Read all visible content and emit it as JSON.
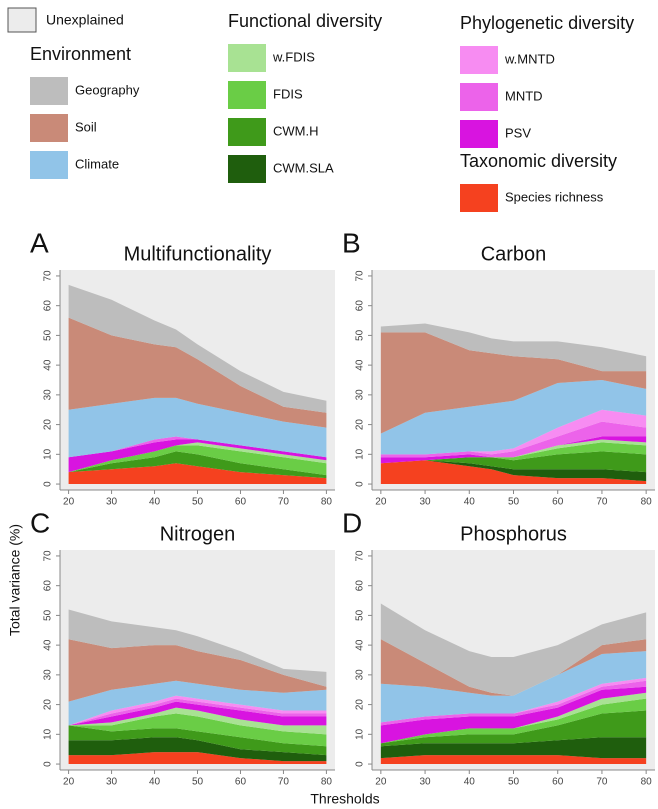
{
  "legend": {
    "unexplained": {
      "name": "Unexplained",
      "color": "#ececec"
    },
    "groups": [
      {
        "title": "Environment",
        "items": [
          {
            "name": "Geography",
            "color": "#bdbdbd"
          },
          {
            "name": "Soil",
            "color": "#c98a78"
          },
          {
            "name": "Climate",
            "color": "#91c4e8"
          }
        ]
      },
      {
        "title": "Functional diversity",
        "items": [
          {
            "name": "w.FDIS",
            "color": "#a8e293"
          },
          {
            "name": "FDIS",
            "color": "#6acd46"
          },
          {
            "name": "CWM.H",
            "color": "#3f9a1a"
          },
          {
            "name": "CWM.SLA",
            "color": "#1f5e0d"
          }
        ]
      },
      {
        "title": "Phylogenetic diversity",
        "items": [
          {
            "name": "w.MNTD",
            "color": "#f78cf2"
          },
          {
            "name": "MNTD",
            "color": "#ec63ea"
          },
          {
            "name": "PSV",
            "color": "#d814e0"
          }
        ]
      },
      {
        "title": "Taxonomic diversity",
        "items": [
          {
            "name": "Species richness",
            "color": "#f5411f"
          }
        ]
      }
    ]
  },
  "y_label": "Total variance (%)",
  "x_label": "Thresholds",
  "chart_data": [
    {
      "type": "area",
      "panel": "A",
      "title": "Multifunctionality",
      "x": [
        20,
        30,
        40,
        45,
        50,
        60,
        70,
        80
      ],
      "xlim": [
        18,
        82
      ],
      "xticks": [
        20,
        30,
        40,
        50,
        60,
        70,
        80
      ],
      "ylim": [
        -2,
        72
      ],
      "yticks": [
        0,
        10,
        20,
        30,
        40,
        50,
        60,
        70
      ],
      "series": [
        {
          "name": "Species richness",
          "color": "#f5411f",
          "values": [
            4,
            5,
            6,
            7,
            6,
            4,
            3,
            2
          ]
        },
        {
          "name": "CWM.SLA",
          "color": "#1f5e0d",
          "values": [
            0,
            0,
            0,
            0,
            0,
            0,
            0,
            0
          ]
        },
        {
          "name": "CWM.H",
          "color": "#3f9a1a",
          "values": [
            0,
            2,
            3,
            4,
            4,
            3,
            2,
            1
          ]
        },
        {
          "name": "FDIS",
          "color": "#6acd46",
          "values": [
            0,
            1,
            2,
            2,
            3,
            4,
            4,
            4
          ]
        },
        {
          "name": "w.FDIS",
          "color": "#a8e293",
          "values": [
            0,
            0,
            0,
            0,
            1,
            1,
            1,
            1
          ]
        },
        {
          "name": "PSV",
          "color": "#d814e0",
          "values": [
            5,
            3,
            3,
            2,
            1,
            1,
            1,
            1
          ]
        },
        {
          "name": "MNTD",
          "color": "#ec63ea",
          "values": [
            0,
            0,
            1,
            1,
            0,
            0,
            0,
            0
          ]
        },
        {
          "name": "w.MNTD",
          "color": "#f78cf2",
          "values": [
            0,
            0,
            0,
            0,
            0,
            0,
            0,
            0
          ]
        },
        {
          "name": "Climate",
          "color": "#91c4e8",
          "values": [
            16,
            16,
            14,
            13,
            12,
            11,
            10,
            10
          ]
        },
        {
          "name": "Soil",
          "color": "#c98a78",
          "values": [
            31,
            23,
            18,
            17,
            15,
            9,
            5,
            5
          ]
        },
        {
          "name": "Geography",
          "color": "#bdbdbd",
          "values": [
            11,
            12,
            8,
            6,
            5,
            5,
            5,
            4
          ]
        }
      ]
    },
    {
      "type": "area",
      "panel": "B",
      "title": "Carbon",
      "x": [
        20,
        30,
        40,
        45,
        50,
        60,
        70,
        80
      ],
      "xlim": [
        18,
        82
      ],
      "xticks": [
        20,
        30,
        40,
        50,
        60,
        70,
        80
      ],
      "ylim": [
        -2,
        72
      ],
      "yticks": [
        0,
        10,
        20,
        30,
        40,
        50,
        60,
        70
      ],
      "series": [
        {
          "name": "Species richness",
          "color": "#f5411f",
          "values": [
            7,
            8,
            6,
            5,
            3,
            2,
            2,
            1
          ]
        },
        {
          "name": "CWM.SLA",
          "color": "#1f5e0d",
          "values": [
            0,
            0,
            1,
            1,
            2,
            3,
            3,
            3
          ]
        },
        {
          "name": "CWM.H",
          "color": "#3f9a1a",
          "values": [
            0,
            0,
            2,
            3,
            3,
            5,
            6,
            6
          ]
        },
        {
          "name": "FDIS",
          "color": "#6acd46",
          "values": [
            0,
            0,
            0,
            0,
            1,
            2,
            3,
            3
          ]
        },
        {
          "name": "w.FDIS",
          "color": "#a8e293",
          "values": [
            0,
            0,
            0,
            0,
            0,
            1,
            1,
            1
          ]
        },
        {
          "name": "PSV",
          "color": "#d814e0",
          "values": [
            2,
            1,
            1,
            0,
            0,
            0,
            1,
            2
          ]
        },
        {
          "name": "MNTD",
          "color": "#ec63ea",
          "values": [
            1,
            1,
            1,
            1,
            2,
            3,
            5,
            3
          ]
        },
        {
          "name": "w.MNTD",
          "color": "#f78cf2",
          "values": [
            0,
            0,
            0,
            1,
            1,
            3,
            4,
            4
          ]
        },
        {
          "name": "Climate",
          "color": "#91c4e8",
          "values": [
            7,
            14,
            15,
            16,
            16,
            15,
            10,
            9
          ]
        },
        {
          "name": "Soil",
          "color": "#c98a78",
          "values": [
            34,
            27,
            19,
            17,
            15,
            8,
            3,
            6
          ]
        },
        {
          "name": "Geography",
          "color": "#bdbdbd",
          "values": [
            2,
            3,
            6,
            5,
            5,
            6,
            8,
            5
          ]
        }
      ]
    },
    {
      "type": "area",
      "panel": "C",
      "title": "Nitrogen",
      "x": [
        20,
        30,
        40,
        45,
        50,
        60,
        70,
        80
      ],
      "xlim": [
        18,
        82
      ],
      "xticks": [
        20,
        30,
        40,
        50,
        60,
        70,
        80
      ],
      "ylim": [
        -2,
        72
      ],
      "yticks": [
        0,
        10,
        20,
        30,
        40,
        50,
        60,
        70
      ],
      "series": [
        {
          "name": "Species richness",
          "color": "#f5411f",
          "values": [
            3,
            3,
            4,
            4,
            4,
            2,
            1,
            1
          ]
        },
        {
          "name": "CWM.SLA",
          "color": "#1f5e0d",
          "values": [
            5,
            5,
            5,
            5,
            4,
            3,
            3,
            2
          ]
        },
        {
          "name": "CWM.H",
          "color": "#3f9a1a",
          "values": [
            5,
            3,
            3,
            3,
            3,
            4,
            3,
            3
          ]
        },
        {
          "name": "FDIS",
          "color": "#6acd46",
          "values": [
            0,
            2,
            4,
            5,
            5,
            4,
            4,
            4
          ]
        },
        {
          "name": "w.FDIS",
          "color": "#a8e293",
          "values": [
            0,
            1,
            1,
            2,
            2,
            2,
            2,
            3
          ]
        },
        {
          "name": "PSV",
          "color": "#d814e0",
          "values": [
            0,
            2,
            2,
            2,
            2,
            3,
            3,
            3
          ]
        },
        {
          "name": "MNTD",
          "color": "#ec63ea",
          "values": [
            0,
            1,
            1,
            1,
            1,
            1,
            1,
            1
          ]
        },
        {
          "name": "w.MNTD",
          "color": "#f78cf2",
          "values": [
            0,
            1,
            1,
            1,
            1,
            1,
            1,
            1
          ]
        },
        {
          "name": "Climate",
          "color": "#91c4e8",
          "values": [
            8,
            7,
            6,
            5,
            5,
            5,
            6,
            7
          ]
        },
        {
          "name": "Soil",
          "color": "#c98a78",
          "values": [
            21,
            14,
            13,
            12,
            11,
            10,
            6,
            1
          ]
        },
        {
          "name": "Geography",
          "color": "#bdbdbd",
          "values": [
            10,
            9,
            6,
            5,
            5,
            3,
            2,
            5
          ]
        }
      ]
    },
    {
      "type": "area",
      "panel": "D",
      "title": "Phosphorus",
      "x": [
        20,
        30,
        40,
        45,
        50,
        60,
        70,
        80
      ],
      "xlim": [
        18,
        82
      ],
      "xticks": [
        20,
        30,
        40,
        50,
        60,
        70,
        80
      ],
      "ylim": [
        -2,
        72
      ],
      "yticks": [
        0,
        10,
        20,
        30,
        40,
        50,
        60,
        70
      ],
      "series": [
        {
          "name": "Species richness",
          "color": "#f5411f",
          "values": [
            2,
            3,
            3,
            3,
            3,
            3,
            2,
            2
          ]
        },
        {
          "name": "CWM.SLA",
          "color": "#1f5e0d",
          "values": [
            4,
            4,
            4,
            4,
            4,
            5,
            7,
            7
          ]
        },
        {
          "name": "CWM.H",
          "color": "#3f9a1a",
          "values": [
            1,
            2,
            3,
            3,
            3,
            5,
            8,
            9
          ]
        },
        {
          "name": "FDIS",
          "color": "#6acd46",
          "values": [
            0,
            1,
            2,
            2,
            2,
            2,
            3,
            4
          ]
        },
        {
          "name": "w.FDIS",
          "color": "#a8e293",
          "values": [
            0,
            0,
            0,
            0,
            0,
            1,
            2,
            2
          ]
        },
        {
          "name": "PSV",
          "color": "#d814e0",
          "values": [
            6,
            5,
            4,
            4,
            4,
            3,
            3,
            2
          ]
        },
        {
          "name": "MNTD",
          "color": "#ec63ea",
          "values": [
            1,
            1,
            1,
            1,
            1,
            1,
            1,
            2
          ]
        },
        {
          "name": "w.MNTD",
          "color": "#f78cf2",
          "values": [
            0,
            0,
            0,
            0,
            0,
            1,
            1,
            1
          ]
        },
        {
          "name": "Climate",
          "color": "#91c4e8",
          "values": [
            13,
            10,
            7,
            6,
            6,
            9,
            10,
            9
          ]
        },
        {
          "name": "Soil",
          "color": "#c98a78",
          "values": [
            15,
            8,
            2,
            1,
            0,
            0,
            3,
            4
          ]
        },
        {
          "name": "Geography",
          "color": "#bdbdbd",
          "values": [
            12,
            11,
            12,
            12,
            13,
            10,
            7,
            9
          ]
        }
      ]
    }
  ]
}
